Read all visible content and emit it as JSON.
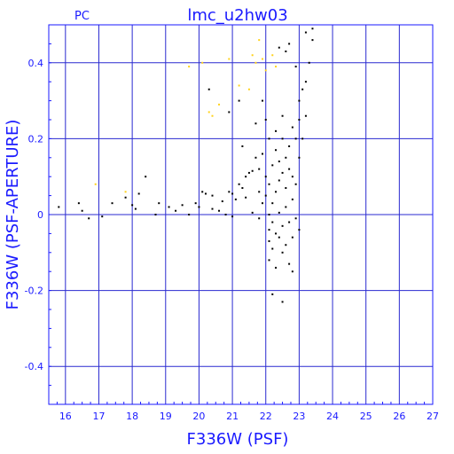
{
  "chart_data": {
    "type": "scatter",
    "title": "lmc_u2hw03",
    "corner_label": "PC",
    "xlabel": "F336W (PSF)",
    "ylabel": "F336W (PSF-APERTURE)",
    "xlim": [
      15.5,
      27
    ],
    "ylim": [
      -0.5,
      0.5
    ],
    "x_ticks": [
      "16",
      "17",
      "18",
      "19",
      "20",
      "21",
      "22",
      "23",
      "24",
      "25",
      "26",
      "27"
    ],
    "y_ticks": [
      "0.4",
      "0.2",
      "0",
      "-0.2",
      "-0.4"
    ],
    "grid": true,
    "colors": {
      "axes": "#1a1aff",
      "grid": "#2a2ad0",
      "points": "#000000",
      "highlight": "#ffd21a",
      "background": "#ffffff"
    },
    "series": [
      {
        "color": "#000000",
        "points": [
          [
            15.8,
            0.02
          ],
          [
            16.4,
            0.03
          ],
          [
            16.5,
            0.01
          ],
          [
            16.7,
            -0.01
          ],
          [
            17.1,
            -0.005
          ],
          [
            17.4,
            0.03
          ],
          [
            17.8,
            0.045
          ],
          [
            18.0,
            0.025
          ],
          [
            18.1,
            0.015
          ],
          [
            18.2,
            0.055
          ],
          [
            18.4,
            0.1
          ],
          [
            18.7,
            0.0
          ],
          [
            18.8,
            0.03
          ],
          [
            19.1,
            0.02
          ],
          [
            19.3,
            0.01
          ],
          [
            19.5,
            0.025
          ],
          [
            19.7,
            0.0
          ],
          [
            19.9,
            0.03
          ],
          [
            20.0,
            0.02
          ],
          [
            20.1,
            0.06
          ],
          [
            20.2,
            0.055
          ],
          [
            20.3,
            0.33
          ],
          [
            20.4,
            0.05
          ],
          [
            20.4,
            0.015
          ],
          [
            20.6,
            0.01
          ],
          [
            20.7,
            0.035
          ],
          [
            20.8,
            0.0
          ],
          [
            20.9,
            0.06
          ],
          [
            20.9,
            0.27
          ],
          [
            21.0,
            0.055
          ],
          [
            21.0,
            -0.005
          ],
          [
            21.1,
            0.04
          ],
          [
            21.2,
            0.3
          ],
          [
            21.2,
            0.08
          ],
          [
            21.3,
            0.07
          ],
          [
            21.3,
            0.18
          ],
          [
            21.4,
            0.1
          ],
          [
            21.4,
            0.045
          ],
          [
            21.5,
            0.11
          ],
          [
            21.6,
            0.115
          ],
          [
            21.6,
            0.005
          ],
          [
            21.7,
            0.24
          ],
          [
            21.7,
            0.15
          ],
          [
            21.8,
            0.12
          ],
          [
            21.8,
            0.06
          ],
          [
            21.8,
            -0.01
          ],
          [
            21.9,
            0.03
          ],
          [
            21.9,
            0.16
          ],
          [
            22.0,
            0.25
          ],
          [
            22.0,
            0.05
          ],
          [
            22.0,
            0.1
          ],
          [
            22.1,
            0.0
          ],
          [
            22.1,
            0.08
          ],
          [
            22.1,
            0.2
          ],
          [
            22.1,
            -0.04
          ],
          [
            22.1,
            -0.07
          ],
          [
            22.1,
            -0.12
          ],
          [
            22.2,
            0.03
          ],
          [
            22.2,
            0.13
          ],
          [
            22.2,
            -0.02
          ],
          [
            22.2,
            -0.09
          ],
          [
            22.2,
            -0.21
          ],
          [
            22.3,
            0.06
          ],
          [
            22.3,
            0.17
          ],
          [
            22.3,
            0.22
          ],
          [
            22.3,
            -0.05
          ],
          [
            22.3,
            -0.14
          ],
          [
            22.4,
            0.09
          ],
          [
            22.4,
            0.14
          ],
          [
            22.4,
            0.005
          ],
          [
            22.4,
            -0.06
          ],
          [
            22.5,
            0.11
          ],
          [
            22.5,
            0.2
          ],
          [
            22.5,
            0.26
          ],
          [
            22.5,
            -0.03
          ],
          [
            22.5,
            -0.1
          ],
          [
            22.5,
            -0.23
          ],
          [
            22.6,
            0.07
          ],
          [
            22.6,
            0.15
          ],
          [
            22.6,
            0.02
          ],
          [
            22.6,
            -0.08
          ],
          [
            22.6,
            0.43
          ],
          [
            22.7,
            0.12
          ],
          [
            22.7,
            0.18
          ],
          [
            22.7,
            -0.02
          ],
          [
            22.7,
            -0.13
          ],
          [
            22.8,
            0.1
          ],
          [
            22.8,
            0.23
          ],
          [
            22.8,
            0.04
          ],
          [
            22.8,
            -0.06
          ],
          [
            22.8,
            -0.15
          ],
          [
            22.9,
            0.2
          ],
          [
            22.9,
            0.39
          ],
          [
            22.9,
            0.08
          ],
          [
            22.9,
            -0.01
          ],
          [
            23.0,
            0.3
          ],
          [
            23.0,
            0.25
          ],
          [
            23.0,
            0.15
          ],
          [
            23.0,
            -0.04
          ],
          [
            23.1,
            0.33
          ],
          [
            23.1,
            0.2
          ],
          [
            23.2,
            0.35
          ],
          [
            23.2,
            0.26
          ],
          [
            23.2,
            0.48
          ],
          [
            23.3,
            0.4
          ],
          [
            23.4,
            0.46
          ],
          [
            23.4,
            0.49
          ],
          [
            21.9,
            0.3
          ],
          [
            22.4,
            0.44
          ],
          [
            22.7,
            0.45
          ]
        ]
      },
      {
        "color": "#ffd21a",
        "points": [
          [
            16.9,
            0.08
          ],
          [
            17.8,
            0.06
          ],
          [
            19.7,
            0.39
          ],
          [
            20.1,
            0.4
          ],
          [
            20.3,
            0.27
          ],
          [
            20.4,
            0.26
          ],
          [
            20.6,
            0.29
          ],
          [
            20.9,
            0.41
          ],
          [
            21.2,
            0.34
          ],
          [
            21.5,
            0.33
          ],
          [
            21.6,
            0.42
          ],
          [
            21.7,
            0.4
          ],
          [
            21.8,
            0.46
          ],
          [
            21.9,
            0.41
          ],
          [
            22.0,
            0.38
          ],
          [
            22.2,
            0.42
          ],
          [
            22.3,
            0.39
          ]
        ]
      }
    ]
  }
}
